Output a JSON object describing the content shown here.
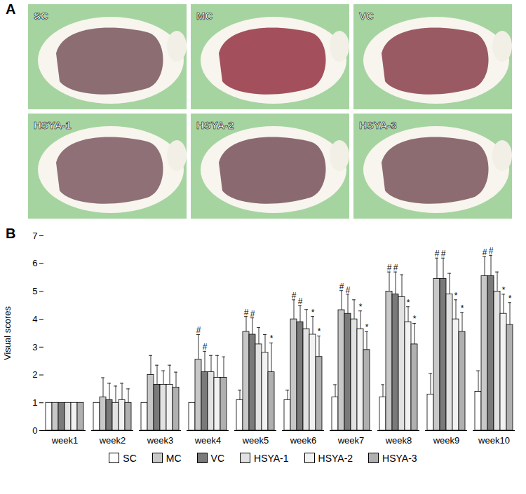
{
  "figure": {
    "panel_labels": [
      "A",
      "B"
    ],
    "photo_labels": [
      "SC",
      "MC",
      "VC",
      "HSYA-1",
      "HSYA-2",
      "HSYA-3"
    ]
  },
  "chart_data": {
    "type": "bar",
    "y_label": "Visual scores",
    "categories": [
      "week1",
      "week2",
      "week3",
      "week4",
      "week5",
      "week6",
      "week7",
      "week8",
      "week9",
      "week10"
    ],
    "ylim": [
      0,
      7
    ],
    "yticks": [
      0,
      1,
      2,
      3,
      4,
      5,
      6,
      7
    ],
    "grid": false,
    "legend": "bottom",
    "series": [
      {
        "name": "SC",
        "color": "#ffffff",
        "values": [
          1,
          1,
          1,
          1,
          1.1,
          1.1,
          1.2,
          1.2,
          1.3,
          1.4
        ],
        "errors": [
          0,
          0,
          0,
          0,
          0.35,
          0.35,
          0.45,
          0.45,
          0.75,
          0.75
        ],
        "significance": [
          null,
          null,
          null,
          null,
          null,
          null,
          null,
          null,
          null,
          null
        ]
      },
      {
        "name": "MC",
        "color": "#c8c8c8",
        "values": [
          1,
          1.2,
          2.0,
          2.55,
          3.55,
          4.0,
          4.33,
          5.0,
          5.45,
          5.55
        ],
        "errors": [
          0,
          0.7,
          0.7,
          0.9,
          0.55,
          0.7,
          0.7,
          0.7,
          0.75,
          0.7
        ],
        "significance": [
          null,
          null,
          null,
          "#",
          "#",
          "#",
          "#",
          "#",
          "#",
          "#"
        ]
      },
      {
        "name": "VC",
        "color": "#7a7a7a",
        "values": [
          1,
          1.1,
          1.65,
          2.1,
          3.45,
          3.9,
          4.2,
          4.9,
          5.45,
          5.55
        ],
        "errors": [
          0,
          0.6,
          0.7,
          0.75,
          0.6,
          0.6,
          0.7,
          0.8,
          0.75,
          0.75
        ],
        "significance": [
          null,
          null,
          null,
          "#",
          "#",
          "#",
          "#",
          "#",
          "#",
          "#"
        ]
      },
      {
        "name": "HSYA-1",
        "color": "#e2e2e2",
        "values": [
          1,
          1.0,
          1.65,
          2.1,
          3.1,
          3.65,
          4.0,
          4.8,
          4.9,
          5.0
        ],
        "errors": [
          0,
          0.6,
          0.5,
          0.6,
          0.6,
          0.7,
          0.7,
          0.8,
          0.75,
          0.7
        ],
        "significance": [
          null,
          null,
          null,
          null,
          null,
          null,
          null,
          null,
          null,
          null
        ]
      },
      {
        "name": "HSYA-2",
        "color": "#f2f2f2",
        "values": [
          1,
          1.1,
          1.65,
          1.9,
          2.8,
          3.45,
          3.65,
          3.9,
          4.0,
          4.2
        ],
        "errors": [
          0,
          0.6,
          0.7,
          0.8,
          0.65,
          0.65,
          0.65,
          0.55,
          0.7,
          0.7
        ],
        "significance": [
          null,
          null,
          null,
          null,
          null,
          "*",
          "*",
          "*",
          "*",
          "*"
        ]
      },
      {
        "name": "HSYA-3",
        "color": "#b0b0b0",
        "values": [
          1,
          1.0,
          1.55,
          1.9,
          2.1,
          2.65,
          2.9,
          3.1,
          3.55,
          3.8
        ],
        "errors": [
          0,
          0.5,
          0.55,
          0.75,
          1.05,
          0.75,
          0.65,
          0.75,
          0.7,
          0.8
        ],
        "significance": [
          null,
          null,
          null,
          null,
          "*",
          "*",
          "*",
          "*",
          "*",
          "*"
        ]
      }
    ]
  }
}
